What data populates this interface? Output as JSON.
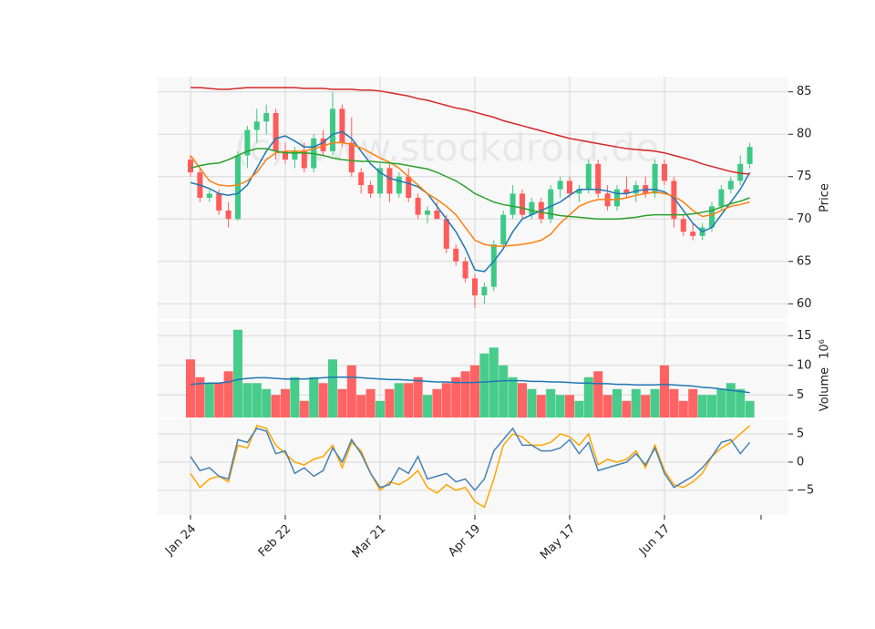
{
  "chart_data": [
    {
      "type": "candlestick",
      "ylabel": "Price",
      "watermark": "(c) www.stockdroid.de",
      "categories": [
        "Jan 24",
        null,
        null,
        null,
        null,
        null,
        null,
        null,
        null,
        null,
        "Feb 22",
        null,
        null,
        null,
        null,
        null,
        null,
        null,
        null,
        null,
        "Mar 21",
        null,
        null,
        null,
        null,
        null,
        null,
        null,
        null,
        null,
        "Apr 19",
        null,
        null,
        null,
        null,
        null,
        null,
        null,
        null,
        null,
        "May 17",
        null,
        null,
        null,
        null,
        null,
        null,
        null,
        null,
        null,
        "Jun 17",
        null,
        null,
        null,
        null,
        null,
        null,
        null,
        null,
        null
      ],
      "open": [
        77,
        75.5,
        72.5,
        73,
        71,
        70,
        77.5,
        80.5,
        81.5,
        82.5,
        78,
        77,
        78,
        76,
        79.5,
        78,
        83,
        79,
        75.5,
        74,
        73,
        76,
        73,
        75,
        72.5,
        70.5,
        71,
        70,
        66.5,
        65,
        63,
        61,
        62,
        67,
        70.5,
        73,
        70.5,
        72,
        70,
        73.5,
        74.5,
        73,
        73.5,
        76.5,
        73,
        71.5,
        73.5,
        73,
        74,
        73,
        76.5,
        74.5,
        70,
        68.5,
        68,
        69,
        71.5,
        73.5,
        74.5,
        76.5
      ],
      "high": [
        77.5,
        76,
        73.5,
        73.5,
        72,
        78,
        81,
        83,
        83.5,
        83,
        79,
        78.5,
        79,
        80,
        80.5,
        85,
        83.5,
        82,
        76,
        74.5,
        76.5,
        76.5,
        75.5,
        76,
        73,
        71.5,
        72,
        70.5,
        67,
        65.5,
        63.5,
        62.5,
        67.5,
        71,
        74,
        73.5,
        72.5,
        72.5,
        74,
        75,
        75,
        74,
        77,
        77,
        74,
        74,
        75,
        74.5,
        75,
        77,
        77,
        75,
        70.5,
        69.5,
        69.5,
        72,
        74,
        75,
        77.5,
        79
      ],
      "low": [
        75,
        72,
        72,
        70.5,
        69,
        69.8,
        76,
        79,
        80,
        77,
        76.5,
        76,
        75.5,
        75.5,
        77.5,
        77.5,
        78.5,
        75,
        73,
        72.5,
        72.5,
        72,
        72.5,
        72,
        70,
        69.5,
        70,
        66,
        64.5,
        62.5,
        59.5,
        60,
        61.5,
        66.5,
        70,
        70,
        70,
        69.5,
        69.5,
        72.5,
        72.5,
        72,
        73,
        72.5,
        71,
        71,
        72.5,
        72,
        72.5,
        72.5,
        74,
        69,
        68,
        67.5,
        67.5,
        68.5,
        71,
        73,
        74,
        76
      ],
      "close": [
        75.5,
        72.5,
        73,
        71,
        70,
        77.5,
        80.5,
        81.5,
        82.5,
        78,
        77,
        78,
        76,
        79.5,
        78,
        83,
        79,
        75.5,
        74,
        73,
        76,
        73,
        75,
        72.5,
        70.5,
        71,
        70,
        66.5,
        65,
        63,
        61,
        62,
        67,
        70.5,
        73,
        70.5,
        72,
        70,
        73.5,
        74.5,
        73,
        73.5,
        76.5,
        73,
        71.5,
        73.5,
        73,
        74,
        73,
        76.5,
        74.5,
        70,
        68.5,
        68,
        69,
        71.5,
        73.5,
        74.5,
        76.5,
        78.5
      ],
      "up_color": "#3dc985",
      "down_color": "#ff5b5b",
      "series": [
        {
          "color": "#1f77b4",
          "values": [
            74.3,
            74,
            73.6,
            73,
            72.8,
            73,
            74,
            76,
            78,
            79.5,
            79.8,
            79.2,
            78.5,
            78.5,
            79,
            80,
            80.3,
            79.5,
            78,
            76.5,
            75.5,
            74.8,
            74.5,
            74.2,
            73.8,
            73,
            71.5,
            70,
            68.5,
            66.5,
            64,
            63.8,
            65,
            66.5,
            68.5,
            70,
            70.5,
            71,
            71.5,
            72,
            72.8,
            73.5,
            73.5,
            73.5,
            73.3,
            73,
            73,
            73.3,
            73.5,
            73.5,
            73.2,
            72.5,
            71,
            69.5,
            68.5,
            69,
            70.5,
            72,
            73.5,
            75.5
          ]
        },
        {
          "color": "#ff7f0e",
          "values": [
            77.5,
            76,
            74.5,
            74,
            73.9,
            74,
            74.5,
            75.5,
            77,
            77.8,
            78,
            78,
            78,
            78.3,
            78.6,
            79,
            79,
            78.8,
            78.4,
            77.8,
            77.2,
            76.7,
            76,
            75,
            74,
            73,
            72.3,
            71.5,
            70.5,
            69,
            67.5,
            67,
            66.8,
            66.8,
            66.9,
            67,
            67.2,
            67.5,
            68.2,
            69.5,
            70.5,
            71.5,
            72,
            72.3,
            72.3,
            72.3,
            72.5,
            72.8,
            73,
            73.2,
            73,
            72.7,
            72,
            71,
            70.3,
            70.5,
            71,
            71.5,
            71.7,
            72
          ]
        },
        {
          "color": "#2ca02c",
          "values": [
            76,
            76.3,
            76.5,
            76.6,
            77,
            77.5,
            78,
            78.3,
            78.3,
            78,
            77.8,
            77.8,
            77.8,
            77.7,
            77.5,
            77.2,
            77,
            76.9,
            76.8,
            76.8,
            76.7,
            76.6,
            76.5,
            76.3,
            76.1,
            75.9,
            75.5,
            75,
            74.5,
            73.8,
            73,
            72.5,
            72,
            71.7,
            71.5,
            71.3,
            71,
            70.8,
            70.6,
            70.4,
            70.3,
            70.2,
            70.1,
            70,
            70,
            70,
            70.1,
            70.2,
            70.4,
            70.5,
            70.5,
            70.5,
            70.5,
            70.6,
            70.8,
            71,
            71.4,
            71.8,
            72.1,
            72.5
          ]
        },
        {
          "color": "#d62728",
          "values": [
            85.5,
            85.5,
            85.4,
            85.3,
            85.3,
            85.4,
            85.5,
            85.5,
            85.5,
            85.5,
            85.5,
            85.5,
            85.4,
            85.4,
            85.4,
            85.3,
            85.3,
            85.3,
            85.2,
            85.2,
            85.1,
            84.9,
            84.7,
            84.5,
            84.2,
            84,
            83.7,
            83.4,
            83.1,
            82.9,
            82.6,
            82.3,
            82,
            81.6,
            81.3,
            81,
            80.7,
            80.4,
            80.1,
            79.8,
            79.5,
            79.3,
            79.1,
            78.9,
            78.7,
            78.5,
            78.3,
            78.2,
            78.1,
            78,
            77.8,
            77.5,
            77.2,
            76.9,
            76.5,
            76.2,
            75.9,
            75.6,
            75.4,
            75.3
          ]
        }
      ],
      "ylim": [
        58.2,
        86.8
      ],
      "yticks": [
        60,
        65,
        70,
        75,
        80,
        85
      ],
      "grid": true
    },
    {
      "type": "bar",
      "ylabel": "Volume",
      "scale_label": "10⁶",
      "values": [
        11,
        8,
        7,
        7,
        9,
        16,
        7,
        7,
        6,
        5,
        6,
        8,
        4,
        8,
        7,
        11,
        6,
        10,
        5,
        6,
        4,
        6,
        7,
        7,
        8,
        5,
        6,
        7,
        8,
        9,
        10,
        12,
        13,
        10,
        8,
        7,
        6,
        5,
        6,
        5,
        5,
        4,
        8,
        9,
        5,
        6,
        4,
        6,
        5,
        6,
        10,
        6,
        4,
        6,
        5,
        5,
        6,
        7,
        6,
        4
      ],
      "series": [
        {
          "color": "#1f77b4",
          "values": [
            6.8,
            6.9,
            7,
            7,
            7.2,
            7.6,
            7.8,
            7.9,
            7.9,
            7.8,
            7.7,
            7.7,
            7.7,
            7.8,
            7.9,
            8,
            8,
            8,
            7.9,
            7.8,
            7.7,
            7.6,
            7.6,
            7.5,
            7.4,
            7.3,
            7.2,
            7.2,
            7.1,
            7.1,
            7.1,
            7.2,
            7.3,
            7.4,
            7.4,
            7.4,
            7.3,
            7.3,
            7.2,
            7.2,
            7.1,
            7,
            7,
            6.9,
            6.9,
            6.8,
            6.8,
            6.7,
            6.7,
            6.7,
            6.8,
            6.7,
            6.6,
            6.5,
            6.3,
            6.2,
            6,
            5.8,
            5.6,
            5.4
          ]
        }
      ],
      "ylim": [
        1.2,
        17.5
      ],
      "yticks": [
        5,
        10,
        15
      ],
      "grid": true
    },
    {
      "type": "line",
      "series": [
        {
          "color": "#ffa500",
          "values": [
            -2,
            -4.5,
            -3,
            -2.5,
            -3.5,
            3,
            2.5,
            6.5,
            6,
            3,
            1.5,
            0,
            -0.5,
            0.5,
            1,
            3,
            -1,
            3.5,
            2,
            -2,
            -5,
            -3.5,
            -4,
            -3,
            -1.5,
            -4.5,
            -5.5,
            -4,
            -5,
            -4.5,
            -7,
            -8,
            -3,
            3,
            5,
            4.5,
            3,
            3,
            3.5,
            5,
            4.5,
            3,
            5,
            -0.5,
            0.5,
            0,
            0.5,
            2,
            -1,
            3,
            -1.5,
            -4,
            -4.5,
            -3.5,
            -2,
            1,
            2.5,
            3.5,
            5,
            6.5
          ]
        },
        {
          "color": "#4682b4",
          "values": [
            1,
            -1.5,
            -1,
            -2.5,
            -3,
            4,
            3.5,
            6,
            5.5,
            1.5,
            2,
            -2,
            -1,
            -2.5,
            -1.5,
            2.5,
            0,
            4,
            1.5,
            -2,
            -4.5,
            -4,
            -1,
            -2,
            1,
            -3,
            -2.5,
            -2,
            -3.5,
            -3,
            -5,
            -3,
            2,
            4,
            6,
            3,
            3,
            2,
            2,
            2.5,
            4,
            1.5,
            3.5,
            -1.5,
            -1,
            -0.5,
            0,
            1.5,
            -0.5,
            2.5,
            -2,
            -4.5,
            -3.5,
            -2.5,
            -1,
            1,
            3.5,
            4,
            1.5,
            3.5
          ]
        }
      ],
      "ylim": [
        -9.4,
        7.6
      ],
      "yticks": [
        {
          "value": -5,
          "label": "−5"
        },
        0,
        5
      ],
      "grid": true
    }
  ]
}
